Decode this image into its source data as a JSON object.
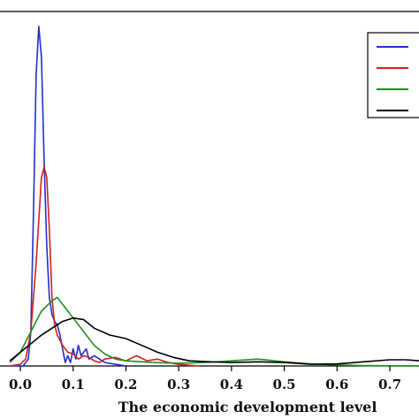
{
  "chart_data": {
    "type": "line",
    "xlabel": "The economic development level",
    "ylabel": "",
    "xlim": [
      -0.02,
      0.76
    ],
    "ylim": [
      0,
      1
    ],
    "x_ticks": [
      "0.0",
      "0.1",
      "0.2",
      "0.3",
      "0.4",
      "0.5",
      "0.6",
      "0.7"
    ],
    "tick_values": [
      0.0,
      0.1,
      0.2,
      0.3,
      0.4,
      0.5,
      0.6,
      0.7
    ],
    "legend_position": "top-right",
    "series": [
      {
        "color": "#1f2fd1",
        "points": [
          [
            -0.02,
            0
          ],
          [
            0.005,
            0
          ],
          [
            0.015,
            0.02
          ],
          [
            0.02,
            0.1
          ],
          [
            0.025,
            0.45
          ],
          [
            0.03,
            0.85
          ],
          [
            0.035,
            0.99
          ],
          [
            0.04,
            0.9
          ],
          [
            0.045,
            0.6
          ],
          [
            0.05,
            0.35
          ],
          [
            0.055,
            0.2
          ],
          [
            0.06,
            0.15
          ],
          [
            0.065,
            0.13
          ],
          [
            0.07,
            0.12
          ],
          [
            0.075,
            0.09
          ],
          [
            0.08,
            0.05
          ],
          [
            0.085,
            0.01
          ],
          [
            0.09,
            0.03
          ],
          [
            0.095,
            0.01
          ],
          [
            0.1,
            0.05
          ],
          [
            0.105,
            0.02
          ],
          [
            0.11,
            0.06
          ],
          [
            0.115,
            0.03
          ],
          [
            0.12,
            0.04
          ],
          [
            0.125,
            0.05
          ],
          [
            0.13,
            0.02
          ],
          [
            0.14,
            0.03
          ],
          [
            0.15,
            0.02
          ],
          [
            0.16,
            0.01
          ],
          [
            0.18,
            0.005
          ],
          [
            0.2,
            0
          ]
        ]
      },
      {
        "color": "#d11f1f",
        "points": [
          [
            -0.02,
            0
          ],
          [
            0.0,
            0.005
          ],
          [
            0.01,
            0.02
          ],
          [
            0.02,
            0.1
          ],
          [
            0.03,
            0.3
          ],
          [
            0.04,
            0.55
          ],
          [
            0.045,
            0.58
          ],
          [
            0.05,
            0.55
          ],
          [
            0.055,
            0.4
          ],
          [
            0.06,
            0.2
          ],
          [
            0.065,
            0.12
          ],
          [
            0.07,
            0.09
          ],
          [
            0.08,
            0.06
          ],
          [
            0.09,
            0.04
          ],
          [
            0.1,
            0.035
          ],
          [
            0.11,
            0.02
          ],
          [
            0.12,
            0.03
          ],
          [
            0.13,
            0.025
          ],
          [
            0.14,
            0.015
          ],
          [
            0.15,
            0.01
          ],
          [
            0.16,
            0.02
          ],
          [
            0.18,
            0.025
          ],
          [
            0.2,
            0.015
          ],
          [
            0.22,
            0.03
          ],
          [
            0.24,
            0.015
          ],
          [
            0.26,
            0.02
          ],
          [
            0.28,
            0.01
          ],
          [
            0.3,
            0.005
          ],
          [
            0.32,
            0.002
          ],
          [
            0.34,
            0
          ]
        ]
      },
      {
        "color": "#1f8f1f",
        "points": [
          [
            -0.02,
            0.01
          ],
          [
            0.0,
            0.04
          ],
          [
            0.02,
            0.1
          ],
          [
            0.04,
            0.16
          ],
          [
            0.06,
            0.19
          ],
          [
            0.07,
            0.2
          ],
          [
            0.08,
            0.18
          ],
          [
            0.1,
            0.14
          ],
          [
            0.12,
            0.1
          ],
          [
            0.14,
            0.06
          ],
          [
            0.16,
            0.035
          ],
          [
            0.18,
            0.02
          ],
          [
            0.2,
            0.015
          ],
          [
            0.25,
            0.01
          ],
          [
            0.3,
            0.008
          ],
          [
            0.35,
            0.01
          ],
          [
            0.4,
            0.015
          ],
          [
            0.45,
            0.02
          ],
          [
            0.5,
            0.012
          ],
          [
            0.55,
            0.006
          ],
          [
            0.6,
            0.003
          ],
          [
            0.65,
            0.001
          ],
          [
            0.7,
            0.0005
          ],
          [
            0.76,
            0
          ]
        ]
      },
      {
        "color": "#000000",
        "points": [
          [
            -0.02,
            0.015
          ],
          [
            0.0,
            0.04
          ],
          [
            0.04,
            0.09
          ],
          [
            0.08,
            0.13
          ],
          [
            0.1,
            0.14
          ],
          [
            0.12,
            0.135
          ],
          [
            0.14,
            0.11
          ],
          [
            0.17,
            0.09
          ],
          [
            0.2,
            0.08
          ],
          [
            0.23,
            0.06
          ],
          [
            0.26,
            0.04
          ],
          [
            0.29,
            0.025
          ],
          [
            0.32,
            0.015
          ],
          [
            0.36,
            0.012
          ],
          [
            0.4,
            0.01
          ],
          [
            0.45,
            0.012
          ],
          [
            0.5,
            0.01
          ],
          [
            0.55,
            0.005
          ],
          [
            0.6,
            0.006
          ],
          [
            0.65,
            0.012
          ],
          [
            0.7,
            0.018
          ],
          [
            0.73,
            0.018
          ],
          [
            0.76,
            0.015
          ]
        ]
      }
    ]
  }
}
